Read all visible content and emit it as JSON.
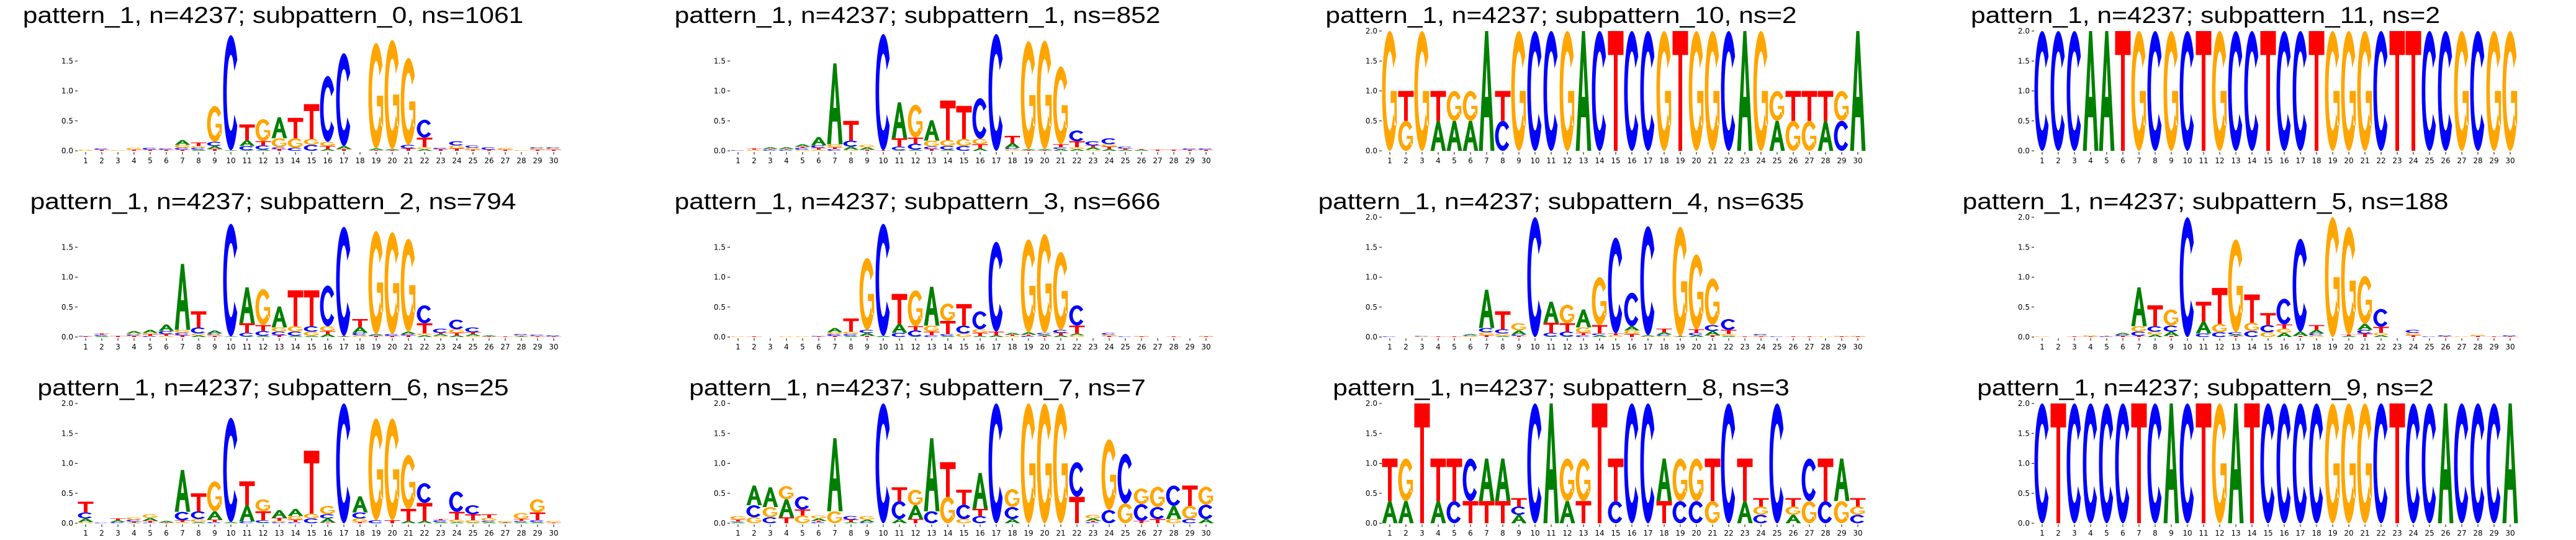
{
  "colors": {
    "A": "#008000",
    "C": "#0000ff",
    "G": "#ffa500",
    "T": "#ff0000"
  },
  "chart_data": [
    {
      "type": "sequence_logo",
      "title": "pattern_1, n=4237; subpattern_0, ns=1061",
      "ylabel": "bits",
      "y_ticks": [
        "0.0",
        "0.5",
        "1.0",
        "1.5"
      ],
      "x_ticks": [
        "1",
        "2",
        "3",
        "4",
        "5",
        "6",
        "7",
        "8",
        "9",
        "10",
        "11",
        "12",
        "13",
        "14",
        "15",
        "16",
        "17",
        "18",
        "19",
        "20",
        "21",
        "22",
        "23",
        "24",
        "25",
        "26",
        "27",
        "28",
        "29",
        "30"
      ],
      "stacks": [
        "G.02",
        "T.02 C.02",
        "G.01",
        "T.02 G.03",
        "T.02 C.03",
        "T.02 C.02",
        "T.02 C.03 G.05 A.08",
        "A.02 C.03 G.03 T.06",
        "T.03 A.05 C.07 G.6",
        "A.01 C1.92",
        "A.01 C.07 A.1 T.26",
        "A.02 C.07 T.07 G.37",
        "T.03 C.03 G.15 A.35",
        "C.05 G.16 T.34",
        "C.1 G.1 T.58",
        "A.03 T.05 G.07 C1.1",
        "T.03 A.05 C1.55",
        "",
        "T.01 A.03 G1.76",
        "T.01 A.02 G1.82",
        "T.04 C.06 G1.45",
        "A.03 G.03 T.16 C.3",
        "T.03 C.02",
        "T.04 G.05 C.07",
        "T.02 G.03 C.04",
        "T.02 C.04",
        "T.02 G.03",
        "G.01",
        "T.02 G.02 C.02",
        "T.02 G.02 C.02"
      ]
    },
    {
      "type": "sequence_logo",
      "title": "pattern_1, n=4237; subpattern_1, ns=852",
      "ylabel": "bits",
      "y_ticks": [
        "0.0",
        "0.5",
        "1.0",
        "1.5"
      ],
      "x_ticks": [
        "1",
        "2",
        "3",
        "4",
        "5",
        "6",
        "7",
        "8",
        "9",
        "10",
        "11",
        "12",
        "13",
        "14",
        "15",
        "16",
        "17",
        "18",
        "19",
        "20",
        "21",
        "22",
        "23",
        "24",
        "25",
        "26",
        "27",
        "28",
        "29",
        "30"
      ],
      "stacks": [
        "C.01",
        "G.02 T.02",
        "C.02 T.01 A.03",
        "C.02 T.01 A.03",
        "G.02 C.03 T.02 A.04",
        "G.02 T.03 C.04 A.14",
        "C.03 T.03 G.05 A1.35",
        "G.02 A.05 C.1 T.33",
        "T.02 A.04 G.04",
        "T.01 C1.94",
        "A.01 C.06 T.14 A.6",
        "A.02 C.1 T.1 G.55",
        "T.03 C.04 G.1 A.34",
        "A.02 C.06 G.1 T.66",
        "C.08 G.12 T.55",
        "A.04 T.07 G.09 C.68",
        "C1.95",
        "G.03 C.02 A.08 T.12",
        "T.01 A.02 G1.8",
        "T.01 A.02 G1.81",
        "A.03 C.03 T.05 G1.3",
        "A.03 G.03 T.1 C.18",
        "G.02 A.04 T.03 C.07",
        "A.03 T.04 G.04 C.1",
        "A.02 T.02 C.03",
        "A.02 T.01",
        "T.02",
        "T.02",
        "T.02 C.02",
        "T.02 C.02"
      ]
    },
    {
      "type": "sequence_logo",
      "title": "pattern_1, n=4237; subpattern_10, ns=2",
      "ylabel": "bits",
      "y_ticks": [
        "0.0",
        "0.5",
        "1.0",
        "1.5",
        "2.0"
      ],
      "x_ticks": [
        "1",
        "2",
        "3",
        "4",
        "5",
        "6",
        "7",
        "8",
        "9",
        "10",
        "11",
        "12",
        "13",
        "14",
        "15",
        "16",
        "17",
        "18",
        "19",
        "20",
        "21",
        "22",
        "23",
        "24",
        "25",
        "26",
        "27",
        "28",
        "29",
        "30"
      ],
      "stacks": [
        "G2",
        "G.5 T.5",
        "G2",
        "A.5 T.5",
        "A.5 G.5",
        "A.5 G.5",
        "A2",
        "C.5 T.5",
        "G2",
        "C2",
        "C2",
        "G2",
        "A2",
        "C2",
        "T2",
        "C2",
        "C2",
        "G2",
        "T2",
        "G2",
        "G2",
        "C2",
        "A2",
        "G2",
        "A.5 G.5",
        "G.5 T.5",
        "G.5 T.5",
        "A.5 T.5",
        "C.5 G.5",
        "A2"
      ]
    },
    {
      "type": "sequence_logo",
      "title": "pattern_1, n=4237; subpattern_11, ns=2",
      "ylabel": "bits",
      "y_ticks": [
        "0.0",
        "0.5",
        "1.0",
        "1.5",
        "2.0"
      ],
      "x_ticks": [
        "1",
        "2",
        "3",
        "4",
        "5",
        "6",
        "7",
        "8",
        "9",
        "10",
        "11",
        "12",
        "13",
        "14",
        "15",
        "16",
        "17",
        "18",
        "19",
        "20",
        "21",
        "22",
        "23",
        "24",
        "25",
        "26",
        "27",
        "28",
        "29",
        "30"
      ],
      "stacks": [
        "C2",
        "C2",
        "C2",
        "A2",
        "A2",
        "T2",
        "G2",
        "C2",
        "G2",
        "C2",
        "T2",
        "G2",
        "C2",
        "C2",
        "T2",
        "C2",
        "C2",
        "T2",
        "G2",
        "G2",
        "G2",
        "C2",
        "T2",
        "T2",
        "C2",
        "C2",
        "G2",
        "C2",
        "G2",
        "G2"
      ]
    },
    {
      "type": "sequence_logo",
      "title": "pattern_1, n=4237; subpattern_2, ns=794",
      "ylabel": "bits",
      "y_ticks": [
        "0.0",
        "0.5",
        "1.0",
        "1.5"
      ],
      "x_ticks": [
        "1",
        "2",
        "3",
        "4",
        "5",
        "6",
        "7",
        "8",
        "9",
        "10",
        "11",
        "12",
        "13",
        "14",
        "15",
        "16",
        "17",
        "18",
        "19",
        "20",
        "21",
        "22",
        "23",
        "24",
        "25",
        "26",
        "27",
        "28",
        "29",
        "30"
      ],
      "stacks": [
        "T.01 C.01",
        "A.02 C.02 T.02",
        "T.02",
        "T.02 C.02 G.02 A.04",
        "C.02 T.03 G.02 A.05",
        "G.02 T.03 C.05 A.11",
        "T.03 C.04 G.05 A1.1",
        "A.03 G.03 C.1 T.27",
        "T.02 G.02 C.02 A.05",
        "A.01 C1.88",
        "A.01 C.06 T.16 A.6",
        "A.02 C.08 T.1 G.6",
        "T.03 C.06 G.07 A.35",
        "A.02 C.07 G.09 T.6",
        "A.02 G.07 C.09 T.6",
        "A.05 T.05 G.08 C.68",
        "A.01 T.01 C1.82",
        "G.03 C.04 A.1 T.13",
        "T.02 C.01 A.02 G1.72",
        "T.02 C.03 G1.7",
        "T.03 C.02 A.04 G1.55",
        "A.03 G.03 T.17 C.3",
        "G.02 A.03 T.02 C.07",
        "A.03 T.04 G.06 C.16",
        "G.02 A.03 T.03 C.08",
        "T.01 A.02",
        "T.01",
        "A.01 T.01 G.01 C.02",
        "T.01 G.01 C.02",
        "T.01 C.02"
      ]
    },
    {
      "type": "sequence_logo",
      "title": "pattern_1, n=4237; subpattern_3, ns=666",
      "ylabel": "bits",
      "y_ticks": [
        "0.0",
        "0.5",
        "1.0",
        "1.5"
      ],
      "x_ticks": [
        "1",
        "2",
        "3",
        "4",
        "5",
        "6",
        "7",
        "8",
        "9",
        "10",
        "11",
        "12",
        "13",
        "14",
        "15",
        "16",
        "17",
        "18",
        "19",
        "20",
        "21",
        "22",
        "23",
        "24",
        "25",
        "26",
        "27",
        "28",
        "29",
        "30"
      ],
      "stacks": [
        "G.01",
        "T.01",
        "",
        "G.01",
        "G.01",
        "T.01 C.01",
        "T.02 C.03 G.03 A.07",
        "A.02 C.03 G.04 T.22",
        "T.02 A.05 C.05 G1.2",
        "A.02 C1.87",
        "C.07 A.15 T.5",
        "A.01 C.1 T.07 G.6",
        "C.03 T.06 G.1 A.65",
        "A.02 C.03 T.22 G.29",
        "G.06 C.13 T.36",
        "A.02 T.05 G.06 C.3",
        "A.03 T.06 C1.5",
        "G.02 T.02 A.03",
        "C.02 T.02 A.04 G1.55",
        "T.02 A.02 C.03 G1.65",
        "A.03 T.04 C.05 G1.3",
        "G.03 A.03 T.13 C.34",
        "",
        "T.02 G.02 C.03",
        "C.01",
        "T.01 G.01",
        "",
        "T.01",
        "",
        "T.01 G.01"
      ]
    },
    {
      "type": "sequence_logo",
      "title": "pattern_1, n=4237; subpattern_4, ns=635",
      "ylabel": "bits",
      "y_ticks": [
        "0.0",
        "0.5",
        "1.0",
        "1.5",
        "2.0"
      ],
      "x_ticks": [
        "1",
        "2",
        "3",
        "4",
        "5",
        "6",
        "7",
        "8",
        "9",
        "10",
        "11",
        "12",
        "13",
        "14",
        "15",
        "16",
        "17",
        "18",
        "19",
        "20",
        "21",
        "22",
        "23",
        "24",
        "25",
        "26",
        "27",
        "28",
        "29",
        "30"
      ],
      "stacks": [
        "C.01",
        "",
        "G.01 C.01",
        "T.01",
        "T.01",
        "G.02 C.01 A.02",
        "T.03 G.05 C.07 A.64",
        "A.02 G.04 C.07 T.3",
        "T.02 C.02 A.07 G.12",
        "C2.0",
        "A.01 C.06 T.17 A.35",
        "A.01 C.08 T.14 G.31",
        "C.03 T.04 G.09 A.3",
        "A.03 C.03 T.14 G.8",
        "G.03 T.03 C1.6",
        "T.05 G.06 A.07 C.56",
        "G.01 A.02 C1.82",
        "G.02 C.02 A.04 T.06",
        "A.01 T.01 G1.82",
        "A.03 C.04 T.06 G1.25",
        "T.03 A.07 C.1 G.78",
        "A.02 G.03 T.07 C.18",
        "T.01",
        "T.01 G.02 C.02",
        "C.01",
        "T.01",
        "T.01",
        "G.01",
        "T.01 G.01",
        "T.01 G.01"
      ]
    },
    {
      "type": "sequence_logo",
      "title": "pattern_1, n=4237; subpattern_5, ns=188",
      "ylabel": "bits",
      "y_ticks": [
        "0.0",
        "0.5",
        "1.0",
        "1.5",
        "2.0"
      ],
      "x_ticks": [
        "1",
        "2",
        "3",
        "4",
        "5",
        "6",
        "7",
        "8",
        "9",
        "10",
        "11",
        "12",
        "13",
        "14",
        "15",
        "16",
        "17",
        "18",
        "19",
        "20",
        "21",
        "22",
        "23",
        "24",
        "25",
        "26",
        "27",
        "28",
        "29",
        "30"
      ],
      "stacks": [
        "G.01",
        "",
        "T.01",
        "T.01 G.02",
        "C.01 T.01",
        "T.02 C.02 A.03",
        "T.02 C.07 G.09 A.65",
        "A.04 G.05 C.09 T.35",
        "T.02 A.07 C.1 G.27",
        "C2.0",
        "C.06 A.2 T.33",
        "C.08 G.14 T.6",
        "T.02 A.02 C.04 G1.55",
        "C.1 G.14 T.47",
        "G.08 C.12 T.2",
        "A.07 G.07 T.07 C.43",
        "T.02 A.07 C1.55",
        "G.03 C.03 A.06 T.08",
        "G2.0",
        "A.02 T.02 G1.8",
        "T.06 C.06 A.1 G.8",
        "A.03 G.04 T.1 C.3",
        "",
        "T.03 G.04 C.05",
        "C.01",
        "T.01 C.02",
        "G.01",
        "T.02 G.02",
        "T.01",
        "T.01 C.02"
      ]
    },
    {
      "type": "sequence_logo",
      "title": "pattern_1, n=4237; subpattern_6, ns=25",
      "ylabel": "bits",
      "y_ticks": [
        "0.0",
        "0.5",
        "1.0",
        "1.5",
        "2.0"
      ],
      "x_ticks": [
        "1",
        "2",
        "3",
        "4",
        "5",
        "6",
        "7",
        "8",
        "9",
        "10",
        "11",
        "12",
        "13",
        "14",
        "15",
        "16",
        "17",
        "18",
        "19",
        "20",
        "21",
        "22",
        "23",
        "24",
        "25",
        "26",
        "27",
        "28",
        "29",
        "30"
      ],
      "stacks": [
        "G.02 A.06 C.1 T.18",
        "C.01",
        "C.02 A.03 T.03",
        "A.01 T.02 C.03 G.04",
        "C.01 T.03 A.05 G.06",
        "T.01 A.03",
        "G.02 T.03 C.14 A.7",
        "A.02 G.05 C.13 T.3",
        "C.02 T.04 A.14 G.5",
        "A.02 C1.74",
        "C.03 A.27 T.4",
        "A.01 C.04 T.15 G.2",
        "C.02 G.02 T.05 A.13",
        "C.02 T.04 G.06 A.12",
        "C.08 G.08 T1.05",
        "T.01 A.07 C.07 G.14",
        "C2.0",
        "T.02 G.06 C.1 A.27",
        "C.05 G1.7",
        "T.05 G1.7",
        "A.04 T.2 G.9",
        "A.04 T.3 C.33",
        "A.02 C.03 T.02",
        "A.02 G.04 T.13 C.34",
        "A.01 G.04 T.1 C.15",
        "A.02 C.02 G.05 T.06",
        "A.01 T.01 G.02",
        "A.02 C.02 T.03 G.1",
        "A.02 C.03 T.13 G.22",
        "T.01 G.03"
      ]
    },
    {
      "type": "sequence_logo",
      "title": "pattern_1, n=4237; subpattern_7, ns=7",
      "ylabel": "bits",
      "y_ticks": [
        "0.0",
        "0.5",
        "1.0",
        "1.5",
        "2.0"
      ],
      "x_ticks": [
        "1",
        "2",
        "3",
        "4",
        "5",
        "6",
        "7",
        "8",
        "9",
        "10",
        "11",
        "12",
        "13",
        "14",
        "15",
        "16",
        "17",
        "18",
        "19",
        "20",
        "21",
        "22",
        "23",
        "24",
        "25",
        "26",
        "27",
        "28",
        "29",
        "30"
      ],
      "stacks": [
        "A.02 C.01 T.03 G.06",
        "G.1 C.2 A.33",
        "C.1 G.17 A.33",
        "T.1 A.3 G.22",
        "G.13 T.1 C.22",
        "C.02 T.02 A.04 G.05",
        "G.2 A1.22",
        "A.02 T.04 C.06",
        "C.02 A.04 G.06",
        "C2.0",
        "A.07 C.3 T.23",
        "T.07 A.23 G.26",
        "C.2 A1.22",
        "G.44 T.58",
        "G.07 C.24 T.25",
        "C.12 T.12 A.6",
        "C2.0",
        "A.07 C.2 G.3",
        "G2.0",
        "G2.0",
        "G2.0",
        "T.44 C.58",
        "C.02 T.02 A.04 G.06",
        "C.22 G1.18",
        "G.33 C.83",
        "T.04 C.28 G.26",
        "T.07 C.2 G.34",
        "G.07 A.22 C.34",
        "C.07 G.22 T.34",
        "A.07 C.24 G.3"
      ]
    },
    {
      "type": "sequence_logo",
      "title": "pattern_1, n=4237; subpattern_8, ns=3",
      "ylabel": "bits",
      "y_ticks": [
        "0.0",
        "0.5",
        "1.0",
        "1.5",
        "2.0"
      ],
      "x_ticks": [
        "1",
        "2",
        "3",
        "4",
        "5",
        "6",
        "7",
        "8",
        "9",
        "10",
        "11",
        "12",
        "13",
        "14",
        "15",
        "16",
        "17",
        "18",
        "19",
        "20",
        "21",
        "22",
        "23",
        "24",
        "25",
        "26",
        "27",
        "28",
        "29",
        "30"
      ],
      "stacks": [
        "A.37 T.71",
        "A.37 G.71",
        "T2.0",
        "A.37 T.71",
        "C.37 T.71",
        "T.37 C.71",
        "T.37 A.71",
        "T.37 A.71",
        "A.14 C.14 T.14",
        "C2.0",
        "A2.0",
        "A.37 G.71",
        "T.37 G.71",
        "T2.0",
        "C.37 T.71",
        "C2.0",
        "C2.0",
        "T.37 A.71",
        "C.37 G.71",
        "C.37 G.71",
        "G.37 T.71",
        "C2.0",
        "A.37 T.71",
        "C.14 G.14 T.14",
        "C2.0",
        "A.14 G.14 T.14",
        "G.37 C.71",
        "C.37 T.71",
        "G.37 A.71",
        "C.14 G.14 T.14"
      ]
    },
    {
      "type": "sequence_logo",
      "title": "pattern_1, n=4237; subpattern_9, ns=2",
      "ylabel": "bits",
      "y_ticks": [
        "0.0",
        "0.5",
        "1.0",
        "1.5",
        "2.0"
      ],
      "x_ticks": [
        "1",
        "2",
        "3",
        "4",
        "5",
        "6",
        "7",
        "8",
        "9",
        "10",
        "11",
        "12",
        "13",
        "14",
        "15",
        "16",
        "17",
        "18",
        "19",
        "20",
        "21",
        "22",
        "23",
        "24",
        "25",
        "26",
        "27",
        "28",
        "29",
        "30"
      ],
      "stacks": [
        "C2",
        "T2",
        "C2",
        "C2",
        "C2",
        "C2",
        "T2",
        "C2",
        "A2",
        "C2",
        "T2",
        "G2",
        "A2",
        "T2",
        "C2",
        "C2",
        "C2",
        "C2",
        "G2",
        "G2",
        "G2",
        "C2",
        "T2",
        "C2",
        "C2",
        "A2",
        "C2",
        "C2",
        "C2",
        "A2"
      ]
    }
  ]
}
